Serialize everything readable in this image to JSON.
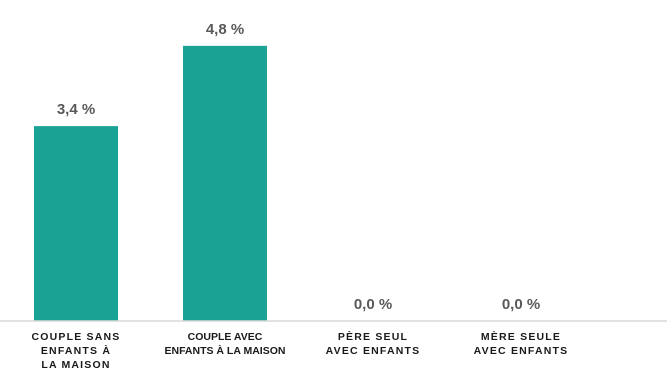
{
  "chart_data": {
    "type": "bar",
    "categories": [
      "COUPLE SANS\nENFANTS À\nLA MAISON",
      "COUPLE AVEC\nENFANTS À LA MAISON",
      "PÈRE SEUL\nAVEC ENFANTS",
      "MÈRE SEULE\nAVEC ENFANTS"
    ],
    "values": [
      3.4,
      4.8,
      0.0,
      0.0
    ],
    "value_labels": [
      "3,4 %",
      "4,8 %",
      "0,0 %",
      "0,0 %"
    ],
    "title": "",
    "xlabel": "",
    "ylabel": "",
    "ylim": [
      0,
      5.6
    ],
    "grid": false,
    "legend": "none",
    "bar_color": "#1AA394",
    "axis_color": "#d9d9d9",
    "label_color": "#595959"
  }
}
